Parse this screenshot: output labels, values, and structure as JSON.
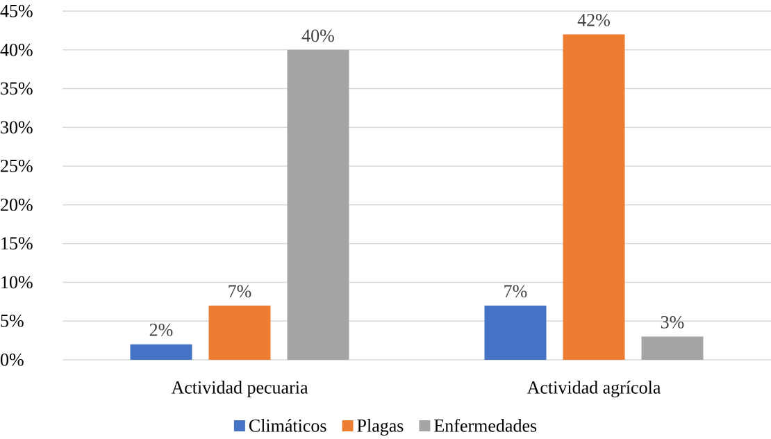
{
  "chart_data": {
    "type": "bar",
    "categories": [
      "Actividad pecuaria",
      "Actividad agrícola"
    ],
    "series": [
      {
        "name": "Climáticos",
        "values": [
          2,
          7
        ],
        "color": "#4472c4"
      },
      {
        "name": "Plagas",
        "values": [
          7,
          42
        ],
        "color": "#ed7d31"
      },
      {
        "name": "Enfermedades",
        "values": [
          40,
          3
        ],
        "color": "#a5a5a5"
      }
    ],
    "data_labels": [
      [
        "2%",
        "7%"
      ],
      [
        "7%",
        "42%"
      ],
      [
        "40%",
        "3%"
      ]
    ],
    "y_ticks": [
      "0%",
      "5%",
      "10%",
      "15%",
      "20%",
      "25%",
      "30%",
      "35%",
      "40%",
      "45%"
    ],
    "ylim": [
      0,
      45
    ],
    "grid": true,
    "legend_position": "bottom",
    "title": "",
    "xlabel": "",
    "ylabel": ""
  }
}
